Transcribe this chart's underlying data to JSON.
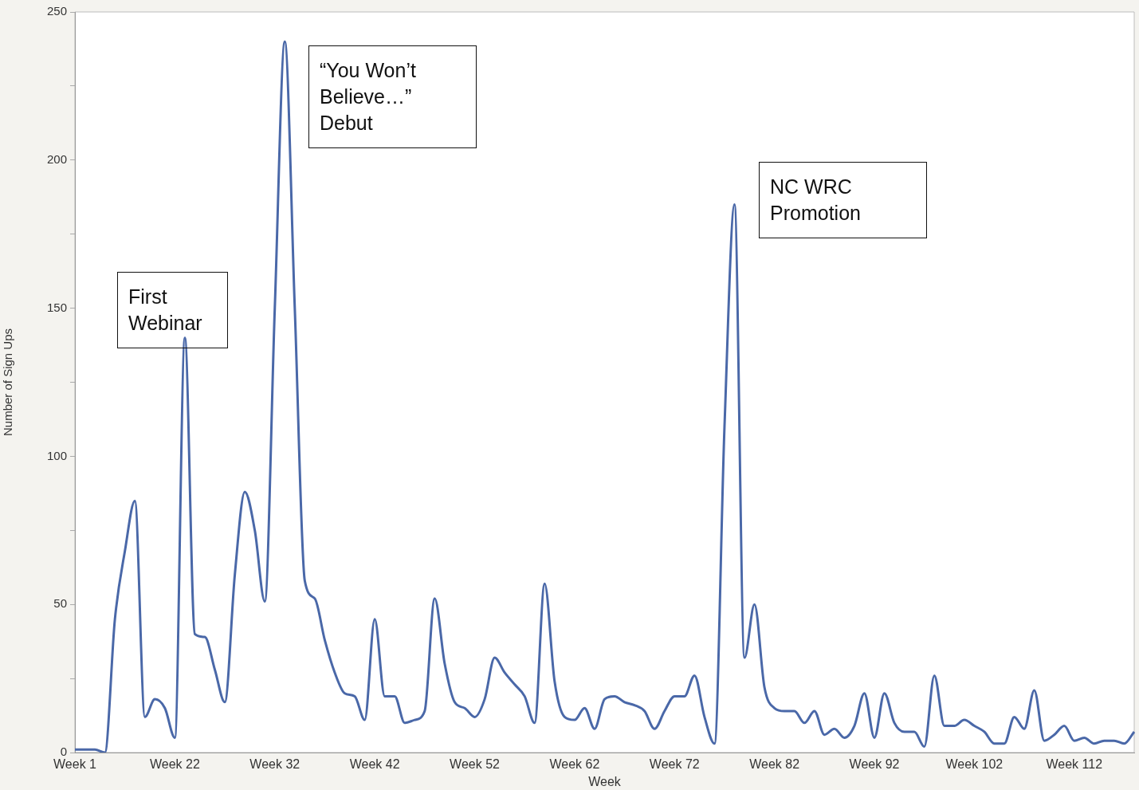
{
  "chart_data": {
    "type": "line",
    "xlabel": "Week",
    "ylabel": "Number of Sign Ups",
    "categories": [
      "Week 1",
      null,
      null,
      null,
      null,
      null,
      null,
      null,
      null,
      null,
      "Week 22",
      null,
      null,
      null,
      null,
      null,
      null,
      null,
      null,
      null,
      "Week 32",
      null,
      null,
      null,
      null,
      null,
      null,
      null,
      null,
      null,
      "Week 42",
      null,
      null,
      null,
      null,
      null,
      null,
      null,
      null,
      null,
      "Week 52",
      null,
      null,
      null,
      null,
      null,
      null,
      null,
      null,
      null,
      "Week 62",
      null,
      null,
      null,
      null,
      null,
      null,
      null,
      null,
      null,
      "Week 72",
      null,
      null,
      null,
      null,
      null,
      null,
      null,
      null,
      null,
      "Week 82",
      null,
      null,
      null,
      null,
      null,
      null,
      null,
      null,
      null,
      "Week 92",
      null,
      null,
      null,
      null,
      null,
      null,
      null,
      null,
      null,
      "Week 102",
      null,
      null,
      null,
      null,
      null,
      null,
      null,
      null,
      null,
      "Week 112",
      null,
      null,
      null,
      null,
      null,
      null
    ],
    "series": [
      {
        "color": "#4a68a8",
        "values": [
          1,
          1,
          1,
          0,
          45,
          68,
          85,
          12,
          18,
          15,
          5,
          140,
          40,
          39,
          28,
          17,
          60,
          88,
          75,
          51,
          150,
          240,
          150,
          58,
          52,
          38,
          27,
          20,
          19,
          11,
          45,
          19,
          19,
          10,
          11,
          14,
          52,
          30,
          17,
          15,
          12,
          18,
          32,
          27,
          23,
          19,
          10,
          57,
          24,
          12,
          11,
          15,
          8,
          18,
          19,
          17,
          16,
          14,
          8,
          14,
          19,
          19,
          26,
          12,
          3,
          110,
          185,
          32,
          50,
          22,
          15,
          14,
          14,
          10,
          14,
          6,
          8,
          5,
          9,
          20,
          5,
          20,
          10,
          7,
          7,
          2,
          26,
          9,
          9,
          11,
          9,
          7,
          3,
          3,
          12,
          8,
          21,
          4,
          6,
          9,
          4,
          5,
          3,
          4,
          4,
          3,
          7
        ]
      }
    ],
    "ylim": [
      0,
      250
    ],
    "yticks": [
      0,
      {
        "value": 25,
        "label": null
      },
      50,
      {
        "value": 75,
        "label": null
      },
      100,
      {
        "value": 125,
        "label": null
      },
      150,
      {
        "value": 175,
        "label": null
      },
      200,
      {
        "value": 225,
        "label": null
      },
      250
    ],
    "marker": "none",
    "line_style": "solid",
    "legend": false,
    "annotations": [
      "First Webinar",
      "“You Won’t Believe…” Debut",
      "NC WRC Promotion"
    ]
  }
}
